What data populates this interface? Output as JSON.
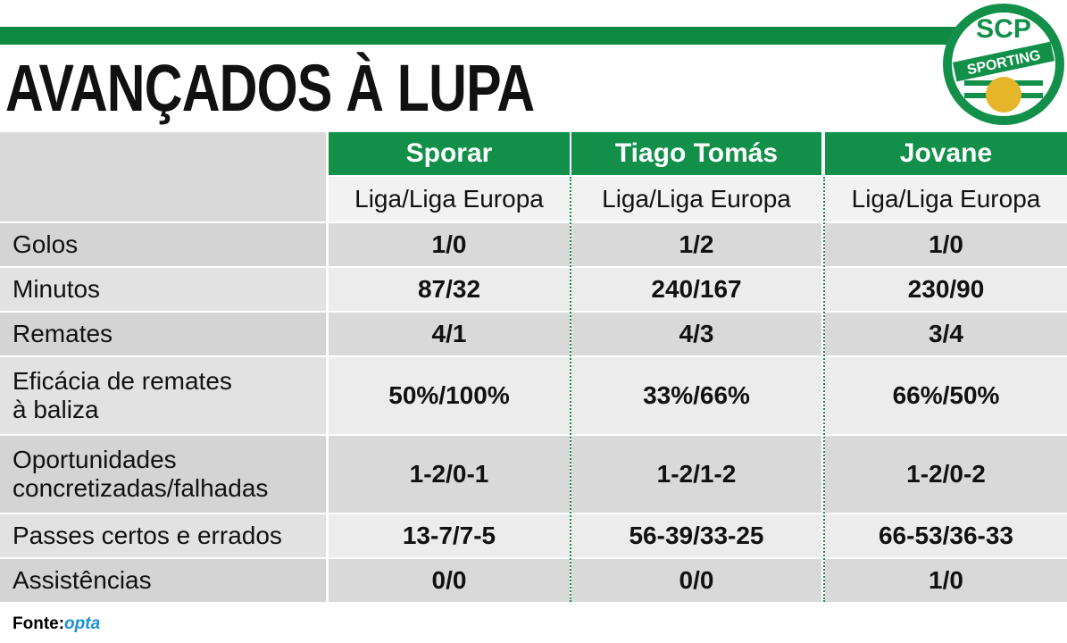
{
  "header": {
    "title": "AVANÇADOS À LUPA"
  },
  "logo": {
    "initials": "SCP",
    "name": "SPORTING"
  },
  "table": {
    "columns": [
      "Sporar",
      "Tiago Tomás",
      "Jovane"
    ],
    "subheader": [
      "Liga/Liga Europa",
      "Liga/Liga Europa",
      "Liga/Liga Europa"
    ],
    "rows": [
      {
        "label": [
          "Golos"
        ],
        "values": [
          "1/0",
          "1/2",
          "1/0"
        ]
      },
      {
        "label": [
          "Minutos"
        ],
        "values": [
          "87/32",
          "240/167",
          "230/90"
        ]
      },
      {
        "label": [
          "Remates"
        ],
        "values": [
          "4/1",
          "4/3",
          "3/4"
        ]
      },
      {
        "label": [
          "Eficácia de remates",
          "à baliza"
        ],
        "values": [
          "50%/100%",
          "33%/66%",
          "66%/50%"
        ]
      },
      {
        "label": [
          "Oportunidades",
          "concretizadas/falhadas"
        ],
        "values": [
          "1-2/0-1",
          "1-2/1-2",
          "1-2/0-2"
        ]
      },
      {
        "label": [
          "Passes certos e errados"
        ],
        "values": [
          "13-7/7-5",
          "56-39/33-25",
          "66-53/36-33"
        ]
      },
      {
        "label": [
          "Assistências"
        ],
        "values": [
          "0/0",
          "0/0",
          "1/0"
        ]
      }
    ]
  },
  "footer": {
    "source_label": "Fonte:",
    "source": "opta"
  }
}
